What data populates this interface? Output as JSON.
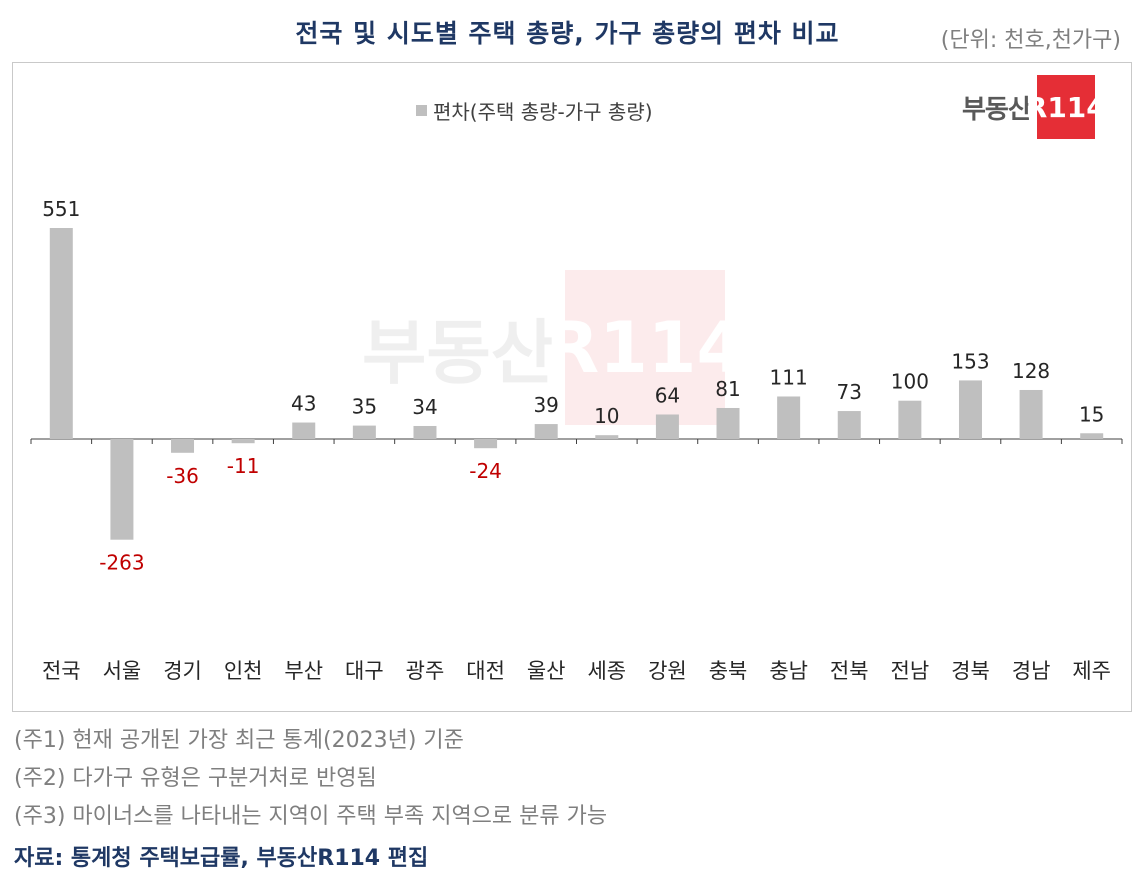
{
  "header": {
    "title": "전국 및 시도별 주택 총량, 가구 총량의 편차 비교",
    "unit": "(단위: 천호,천가구)"
  },
  "brand": {
    "text": "부동산",
    "badge": "R114"
  },
  "colors": {
    "bar": "#bfbfbf",
    "negative_label": "#c00000",
    "positive_label": "#262626",
    "title": "#1f3864"
  },
  "chart_data": {
    "type": "bar",
    "legend": [
      "편차(주택 총량-가구 총량)"
    ],
    "legend_position": "top-center",
    "grid": false,
    "categories": [
      "전국",
      "서울",
      "경기",
      "인천",
      "부산",
      "대구",
      "광주",
      "대전",
      "울산",
      "세종",
      "강원",
      "충북",
      "충남",
      "전북",
      "전남",
      "경북",
      "경남",
      "제주"
    ],
    "series": [
      {
        "name": "편차(주택 총량-가구 총량)",
        "values": [
          551,
          -263,
          -36,
          -11,
          43,
          35,
          34,
          -24,
          39,
          10,
          64,
          81,
          111,
          73,
          100,
          153,
          128,
          15
        ]
      }
    ],
    "ylim": [
      -263,
      551
    ]
  },
  "notes": [
    "(주1) 현재 공개된 가장 최근 통계(2023년) 기준",
    "(주2) 다가구 유형은 구분거처로 반영됨",
    "(주3) 마이너스를 나타내는 지역이 주택 부족 지역으로 분류 가능"
  ],
  "source": "자료: 통계청 주택보급률, 부동산R114 편집"
}
